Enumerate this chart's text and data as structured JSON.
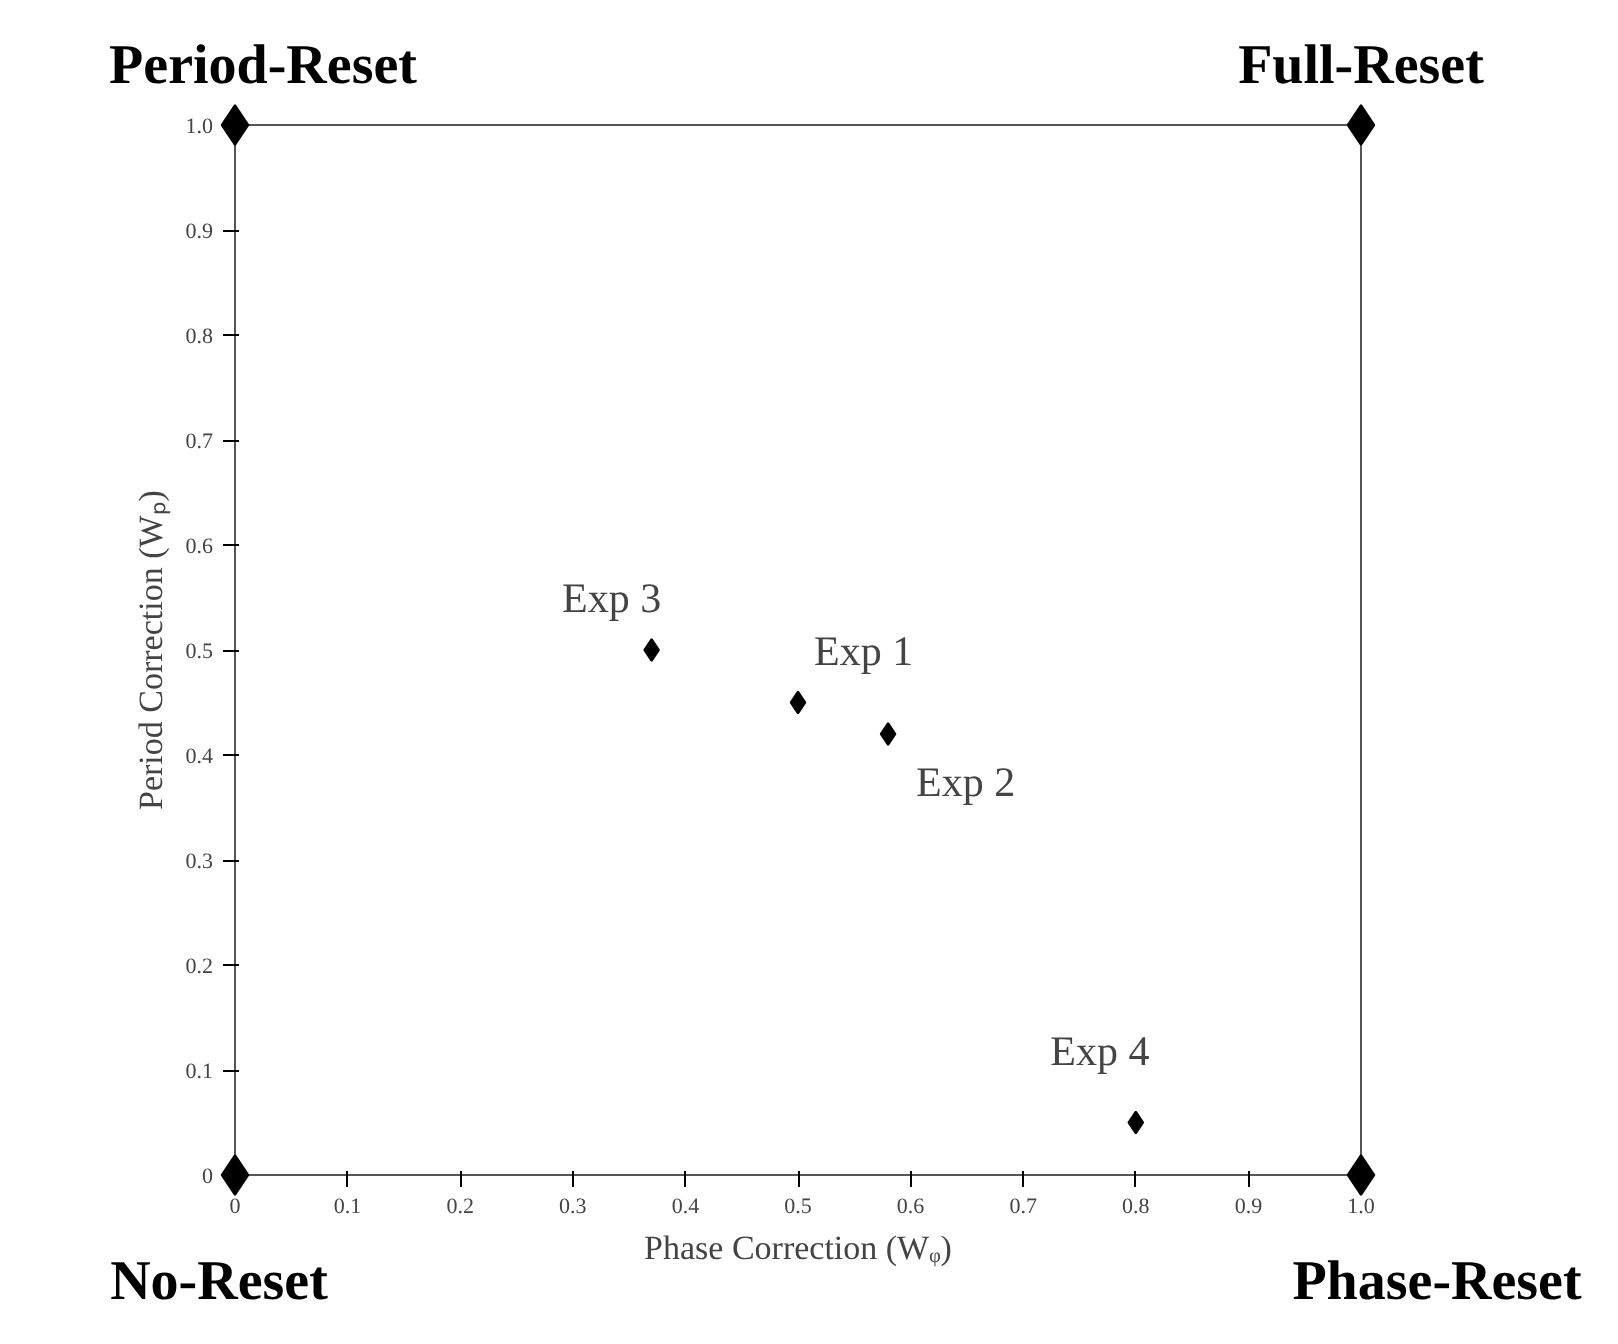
{
  "chart_data": {
    "type": "scatter",
    "xlabel": "Phase Correction (Wᵩ)",
    "ylabel": "Period Correction (Wₚ)",
    "series": [
      {
        "color": "#000000",
        "x": [
          0,
          0,
          1,
          1
        ],
        "values": [
          1,
          0,
          1,
          0
        ]
      },
      {
        "color": "#000000",
        "x": [
          0.37,
          0.5,
          0.58,
          0.8
        ],
        "values": [
          0.5,
          0.45,
          0.42,
          0.05
        ]
      }
    ],
    "xlim": [
      0,
      1
    ],
    "ylim": [
      0,
      1
    ],
    "xticks": [
      0,
      0.1,
      0.2,
      0.3,
      0.4,
      0.5,
      0.6,
      0.7,
      0.8,
      0.9,
      {
        "value": 1,
        "label": "1.0"
      }
    ],
    "yticks": [
      0,
      0.1,
      0.2,
      0.3,
      0.4,
      0.5,
      0.6,
      0.7,
      0.8,
      0.9,
      {
        "value": 1,
        "label": "1.0"
      }
    ],
    "marker": "diamond",
    "grid": false,
    "annotations": [
      {
        "text": "Period-Reset",
        "x": 0,
        "y": 1
      },
      {
        "text": "Full-Reset",
        "x": 1,
        "y": 1
      },
      {
        "text": "No-Reset",
        "x": 0,
        "y": 0
      },
      {
        "text": "Phase-Reset",
        "x": 1,
        "y": 0
      },
      {
        "text": "Exp 3",
        "x": 0.37,
        "y": 0.5
      },
      {
        "text": "Exp 1",
        "x": 0.5,
        "y": 0.45
      },
      {
        "text": "Exp 2",
        "x": 0.58,
        "y": 0.42
      },
      {
        "text": "Exp 4",
        "x": 0.8,
        "y": 0.05
      }
    ]
  }
}
